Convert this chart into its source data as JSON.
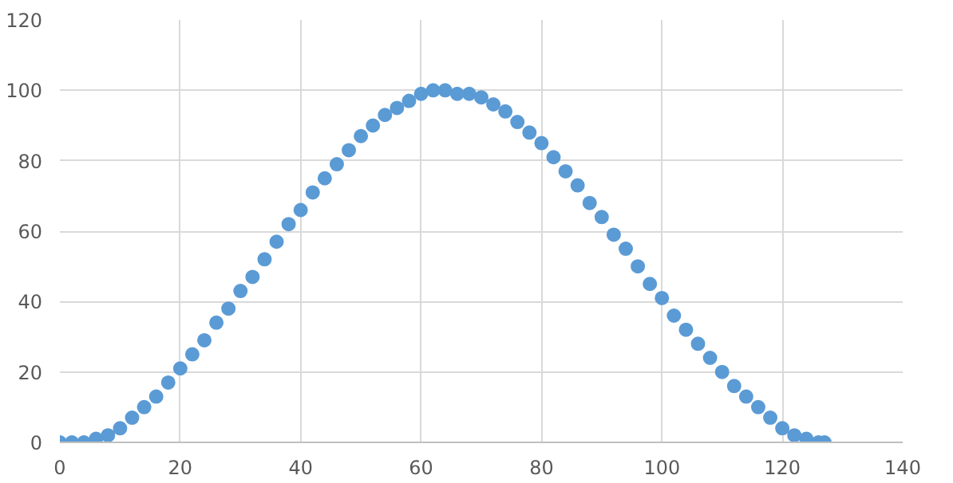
{
  "chart_data": {
    "type": "scatter",
    "marker": "circle",
    "grid": true,
    "xlim": [
      0,
      140
    ],
    "xticks": [
      0,
      20,
      40,
      60,
      80,
      100,
      120,
      140
    ],
    "ylim": [
      0,
      120
    ],
    "yticks": [
      0,
      20,
      40,
      60,
      80,
      100,
      120
    ],
    "series": [
      {
        "color": "#5b9bd5",
        "x": [
          0,
          2,
          4,
          6,
          8,
          10,
          12,
          14,
          16,
          18,
          20,
          22,
          24,
          26,
          28,
          30,
          32,
          34,
          36,
          38,
          40,
          42,
          44,
          46,
          48,
          50,
          52,
          54,
          56,
          58,
          60,
          62,
          64,
          66,
          68,
          70,
          72,
          74,
          76,
          78,
          80,
          82,
          84,
          86,
          88,
          90,
          92,
          94,
          96,
          98,
          100,
          102,
          104,
          106,
          108,
          110,
          112,
          114,
          116,
          118,
          120,
          122,
          124,
          126,
          127
        ],
        "values": [
          0,
          0,
          0,
          1,
          2,
          4,
          7,
          10,
          13,
          17,
          21,
          25,
          29,
          34,
          38,
          43,
          47,
          52,
          57,
          62,
          66,
          71,
          75,
          79,
          83,
          87,
          90,
          93,
          95,
          97,
          99,
          100,
          100,
          99,
          99,
          98,
          96,
          94,
          91,
          88,
          85,
          81,
          77,
          73,
          68,
          64,
          59,
          55,
          50,
          45,
          41,
          36,
          32,
          28,
          24,
          20,
          16,
          13,
          10,
          7,
          4,
          2,
          1,
          0,
          0
        ]
      }
    ]
  }
}
